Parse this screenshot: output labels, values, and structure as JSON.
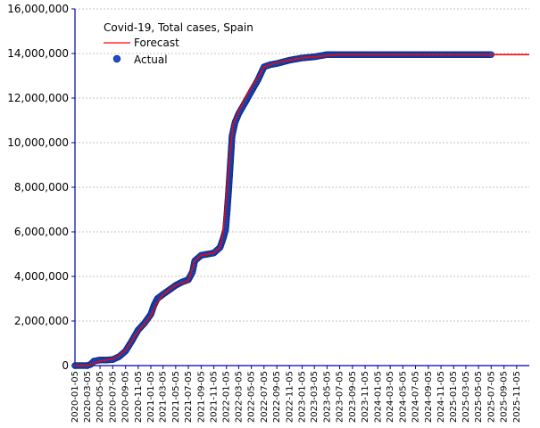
{
  "chart_data": {
    "type": "line",
    "title": "Covid-19, Total cases, Spain",
    "xlabel": "",
    "ylabel": "",
    "ylim": [
      0,
      16000000
    ],
    "y_ticks": [
      0,
      2000000,
      4000000,
      6000000,
      8000000,
      10000000,
      12000000,
      14000000,
      16000000
    ],
    "y_tick_labels": [
      "0",
      "2,000,000",
      "4,000,000",
      "6,000,000",
      "8,000,000",
      "10,000,000",
      "12,000,000",
      "14,000,000",
      "16,000,000"
    ],
    "x_tick_labels": [
      "2020-01-05",
      "2020-03-05",
      "2020-05-05",
      "2020-07-05",
      "2020-09-05",
      "2020-11-05",
      "2021-01-05",
      "2021-03-05",
      "2021-05-05",
      "2021-07-05",
      "2021-09-05",
      "2021-11-05",
      "2022-01-05",
      "2022-03-05",
      "2022-05-05",
      "2022-07-05",
      "2022-09-05",
      "2022-11-05",
      "2023-01-05",
      "2023-03-05",
      "2023-05-05",
      "2023-07-05",
      "2023-09-05",
      "2023-11-05",
      "2024-01-05",
      "2024-03-05",
      "2024-05-05",
      "2024-07-05",
      "2024-09-05",
      "2024-11-05",
      "2025-01-05",
      "2025-03-05",
      "2025-05-05",
      "2025-07-05",
      "2025-09-05",
      "2025-11-05"
    ],
    "grid": true,
    "legend_position": "top-left",
    "colors": {
      "forecast": "#ff0000",
      "actual": "#1f4fc8",
      "grid": "#b0b0b0",
      "axis": "#0000aa"
    },
    "series": [
      {
        "name": "Forecast",
        "kind": "line",
        "x": [
          "2020-01-05",
          "2020-03-05",
          "2020-04-05",
          "2020-05-05",
          "2020-06-05",
          "2020-07-05",
          "2020-08-05",
          "2020-09-05",
          "2020-10-05",
          "2020-11-05",
          "2020-12-05",
          "2021-01-05",
          "2021-02-05",
          "2021-03-05",
          "2021-04-05",
          "2021-05-05",
          "2021-06-05",
          "2021-07-05",
          "2021-08-05",
          "2021-09-05",
          "2021-10-05",
          "2021-11-05",
          "2021-12-05",
          "2021-12-20",
          "2022-01-05",
          "2022-01-15",
          "2022-02-05",
          "2022-03-05",
          "2022-04-05",
          "2022-05-05",
          "2022-06-05",
          "2022-07-05",
          "2022-08-05",
          "2022-09-05",
          "2022-11-05",
          "2023-01-05",
          "2023-03-05",
          "2023-05-05",
          "2023-07-05",
          "2024-01-05",
          "2025-01-05",
          "2026-01-05"
        ],
        "values": [
          0,
          0,
          100000,
          200000,
          250000,
          300000,
          450000,
          700000,
          1100000,
          1550000,
          1850000,
          2250000,
          2800000,
          3200000,
          3400000,
          3600000,
          3700000,
          3800000,
          4700000,
          4950000,
          5000000,
          5050000,
          5300000,
          6000000,
          7500000,
          8800000,
          10800000,
          11400000,
          12000000,
          12500000,
          12900000,
          13400000,
          13500000,
          13600000,
          13700000,
          13800000,
          13850000,
          13900000,
          13950000,
          13950000,
          13950000,
          13950000
        ]
      },
      {
        "name": "Actual",
        "kind": "scatter",
        "x": [
          "2020-01-05",
          "2020-03-05",
          "2020-03-20",
          "2020-04-05",
          "2020-05-05",
          "2020-06-05",
          "2020-07-05",
          "2020-08-05",
          "2020-09-05",
          "2020-10-05",
          "2020-11-05",
          "2020-12-05",
          "2021-01-05",
          "2021-01-20",
          "2021-02-05",
          "2021-03-05",
          "2021-04-05",
          "2021-05-05",
          "2021-06-05",
          "2021-07-05",
          "2021-07-25",
          "2021-08-05",
          "2021-09-05",
          "2021-10-05",
          "2021-11-05",
          "2021-12-05",
          "2021-12-20",
          "2022-01-01",
          "2022-01-08",
          "2022-01-15",
          "2022-01-22",
          "2022-02-01",
          "2022-02-15",
          "2022-03-05",
          "2022-04-05",
          "2022-05-05",
          "2022-06-05",
          "2022-07-05",
          "2022-08-05",
          "2022-09-05",
          "2022-11-05",
          "2023-01-05",
          "2023-03-05",
          "2023-05-05",
          "2023-07-05",
          "2024-01-05",
          "2025-01-05",
          "2025-07-05"
        ],
        "values": [
          0,
          0,
          50000,
          200000,
          250000,
          250000,
          270000,
          400000,
          650000,
          1100000,
          1600000,
          1900000,
          2300000,
          2700000,
          3000000,
          3200000,
          3400000,
          3600000,
          3750000,
          3850000,
          4200000,
          4700000,
          4950000,
          5000000,
          5050000,
          5300000,
          5700000,
          6100000,
          6900000,
          7800000,
          8800000,
          10300000,
          10900000,
          11300000,
          11800000,
          12300000,
          12800000,
          13400000,
          13500000,
          13550000,
          13700000,
          13800000,
          13850000,
          13950000,
          13950000,
          13950000,
          13950000,
          13950000
        ]
      }
    ]
  }
}
